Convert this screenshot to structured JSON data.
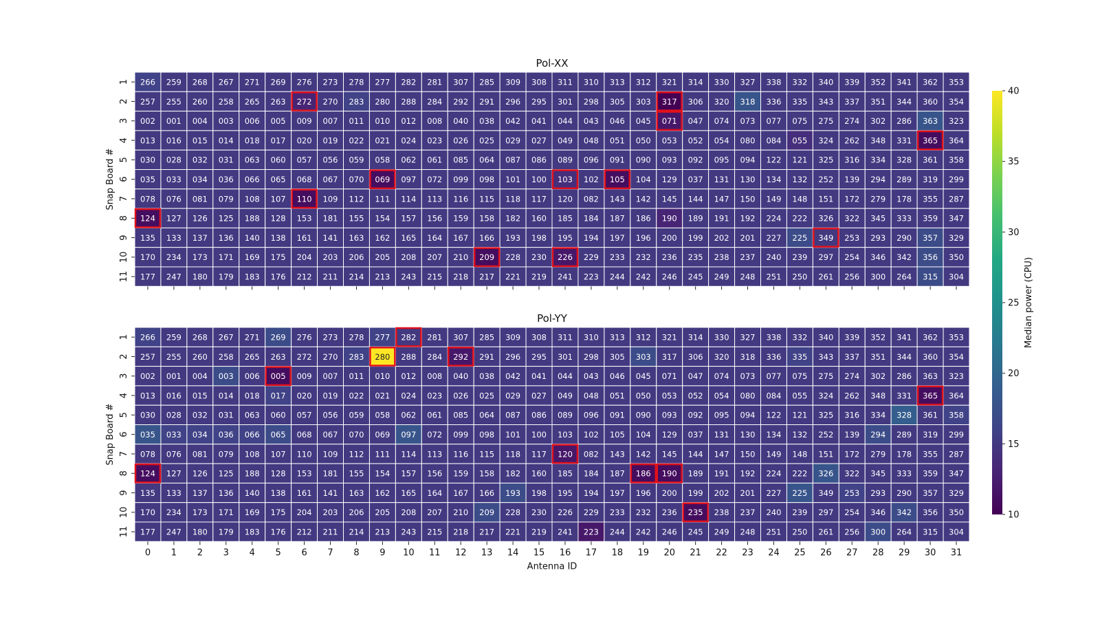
{
  "chart_data": {
    "type": "heatmap",
    "x_tick_labels": [
      "0",
      "1",
      "2",
      "3",
      "4",
      "5",
      "6",
      "7",
      "8",
      "9",
      "10",
      "11",
      "12",
      "13",
      "14",
      "15",
      "16",
      "17",
      "18",
      "19",
      "20",
      "21",
      "22",
      "23",
      "24",
      "25",
      "26",
      "27",
      "28",
      "29",
      "30",
      "31"
    ],
    "y_tick_labels": [
      "1",
      "2",
      "3",
      "4",
      "5",
      "6",
      "7",
      "8",
      "9",
      "10",
      "11"
    ],
    "xlabel": "Antenna ID",
    "ylabel": "Snap Board #",
    "colorbar": {
      "label": "Median power (CPU)",
      "range": [
        10,
        40
      ],
      "ticks": [
        "10",
        "15",
        "20",
        "25",
        "30",
        "35",
        "40"
      ],
      "colormap": "viridis"
    },
    "cell_labels": [
      [
        "266",
        "259",
        "268",
        "267",
        "271",
        "269",
        "276",
        "273",
        "278",
        "277",
        "282",
        "281",
        "307",
        "285",
        "309",
        "308",
        "311",
        "310",
        "313",
        "312",
        "321",
        "314",
        "330",
        "327",
        "338",
        "332",
        "340",
        "339",
        "352",
        "341",
        "362",
        "353"
      ],
      [
        "257",
        "255",
        "260",
        "258",
        "265",
        "263",
        "272",
        "270",
        "283",
        "280",
        "288",
        "284",
        "292",
        "291",
        "296",
        "295",
        "301",
        "298",
        "305",
        "303",
        "317",
        "306",
        "320",
        "318",
        "336",
        "335",
        "343",
        "337",
        "351",
        "344",
        "360",
        "354"
      ],
      [
        "002",
        "001",
        "004",
        "003",
        "006",
        "005",
        "009",
        "007",
        "011",
        "010",
        "012",
        "008",
        "040",
        "038",
        "042",
        "041",
        "044",
        "043",
        "046",
        "045",
        "071",
        "047",
        "074",
        "073",
        "077",
        "075",
        "275",
        "274",
        "302",
        "286",
        "363",
        "323"
      ],
      [
        "013",
        "016",
        "015",
        "014",
        "018",
        "017",
        "020",
        "019",
        "022",
        "021",
        "024",
        "023",
        "026",
        "025",
        "029",
        "027",
        "049",
        "048",
        "051",
        "050",
        "053",
        "052",
        "054",
        "080",
        "084",
        "055",
        "324",
        "262",
        "348",
        "331",
        "365",
        "364"
      ],
      [
        "030",
        "028",
        "032",
        "031",
        "063",
        "060",
        "057",
        "056",
        "059",
        "058",
        "062",
        "061",
        "085",
        "064",
        "087",
        "086",
        "089",
        "096",
        "091",
        "090",
        "093",
        "092",
        "095",
        "094",
        "122",
        "121",
        "325",
        "316",
        "334",
        "328",
        "361",
        "358"
      ],
      [
        "035",
        "033",
        "034",
        "036",
        "066",
        "065",
        "068",
        "067",
        "070",
        "069",
        "097",
        "072",
        "099",
        "098",
        "101",
        "100",
        "103",
        "102",
        "105",
        "104",
        "129",
        "037",
        "131",
        "130",
        "134",
        "132",
        "252",
        "139",
        "294",
        "289",
        "319",
        "299"
      ],
      [
        "078",
        "076",
        "081",
        "079",
        "108",
        "107",
        "110",
        "109",
        "112",
        "111",
        "114",
        "113",
        "116",
        "115",
        "118",
        "117",
        "120",
        "082",
        "143",
        "142",
        "145",
        "144",
        "147",
        "150",
        "149",
        "148",
        "151",
        "172",
        "279",
        "178",
        "355",
        "287"
      ],
      [
        "124",
        "127",
        "126",
        "125",
        "188",
        "128",
        "153",
        "181",
        "155",
        "154",
        "157",
        "156",
        "159",
        "158",
        "182",
        "160",
        "185",
        "184",
        "187",
        "186",
        "190",
        "189",
        "191",
        "192",
        "224",
        "222",
        "326",
        "322",
        "345",
        "333",
        "359",
        "347"
      ],
      [
        "135",
        "133",
        "137",
        "136",
        "140",
        "138",
        "161",
        "141",
        "163",
        "162",
        "165",
        "164",
        "167",
        "166",
        "193",
        "198",
        "195",
        "194",
        "197",
        "196",
        "200",
        "199",
        "202",
        "201",
        "227",
        "225",
        "349",
        "253",
        "293",
        "290",
        "357",
        "329"
      ],
      [
        "170",
        "234",
        "173",
        "171",
        "169",
        "175",
        "204",
        "203",
        "206",
        "205",
        "208",
        "207",
        "210",
        "209",
        "228",
        "230",
        "226",
        "229",
        "233",
        "232",
        "236",
        "235",
        "238",
        "237",
        "240",
        "239",
        "297",
        "254",
        "346",
        "342",
        "356",
        "350"
      ],
      [
        "177",
        "247",
        "180",
        "179",
        "183",
        "176",
        "212",
        "211",
        "214",
        "213",
        "243",
        "215",
        "218",
        "217",
        "221",
        "219",
        "241",
        "223",
        "244",
        "242",
        "246",
        "245",
        "249",
        "248",
        "251",
        "250",
        "261",
        "256",
        "300",
        "264",
        "315",
        "304"
      ]
    ],
    "panels": [
      {
        "title": "Pol-XX",
        "median_power": [
          [
            16,
            15,
            15,
            15,
            15,
            15,
            15,
            15,
            15,
            15,
            15,
            15,
            15,
            15,
            15,
            15,
            15,
            15,
            15,
            15,
            15,
            15,
            15,
            15,
            15,
            15,
            15,
            15,
            15,
            15,
            15,
            15
          ],
          [
            15,
            15,
            15,
            15,
            15,
            15,
            13,
            15,
            16,
            15,
            15,
            15,
            15,
            15,
            15,
            15,
            15,
            15,
            15,
            15,
            10,
            15,
            15,
            18,
            15,
            15,
            15,
            15,
            15,
            15,
            15,
            15
          ],
          [
            15,
            15,
            15,
            15,
            15,
            15,
            15,
            15,
            15,
            15,
            15,
            15,
            15,
            15,
            15,
            15,
            15,
            15,
            15,
            15,
            12,
            15,
            15,
            15,
            15,
            15,
            15,
            15,
            15,
            15,
            18,
            15
          ],
          [
            15,
            15,
            15,
            15,
            15,
            15,
            15,
            15,
            15,
            15,
            15,
            15,
            15,
            15,
            15,
            15,
            15,
            15,
            15,
            15,
            15,
            15,
            15,
            15,
            15,
            14,
            15,
            15,
            15,
            15,
            11,
            15
          ],
          [
            15,
            15,
            15,
            15,
            15,
            15,
            15,
            15,
            15,
            15,
            15,
            15,
            15,
            15,
            15,
            15,
            15,
            15,
            15,
            15,
            15,
            15,
            15,
            15,
            15,
            15,
            15,
            15,
            15,
            15,
            15,
            15
          ],
          [
            15,
            15,
            15,
            15,
            15,
            15,
            15,
            15,
            15,
            11,
            15,
            15,
            15,
            15,
            15,
            15,
            14,
            15,
            11,
            15,
            15,
            15,
            15,
            15,
            15,
            15,
            15,
            15,
            15,
            15,
            15,
            15
          ],
          [
            15,
            15,
            15,
            15,
            15,
            15,
            11,
            15,
            15,
            15,
            15,
            15,
            15,
            15,
            15,
            15,
            15,
            15,
            15,
            15,
            15,
            15,
            15,
            15,
            15,
            15,
            15,
            15,
            15,
            15,
            15,
            15
          ],
          [
            11,
            15,
            15,
            15,
            15,
            15,
            15,
            15,
            15,
            15,
            15,
            15,
            15,
            15,
            15,
            15,
            15,
            15,
            15,
            15,
            13,
            15,
            15,
            15,
            15,
            15,
            15,
            15,
            15,
            15,
            15,
            15
          ],
          [
            15,
            15,
            15,
            15,
            15,
            15,
            15,
            15,
            15,
            15,
            15,
            15,
            15,
            15,
            15,
            15,
            15,
            15,
            15,
            15,
            15,
            15,
            15,
            15,
            15,
            17,
            15,
            15,
            15,
            15,
            17,
            15
          ],
          [
            15,
            15,
            15,
            15,
            15,
            15,
            15,
            15,
            15,
            15,
            15,
            15,
            15,
            11,
            15,
            15,
            12,
            15,
            15,
            15,
            15,
            15,
            15,
            15,
            15,
            15,
            15,
            15,
            15,
            15,
            17,
            15
          ],
          [
            15,
            15,
            15,
            15,
            15,
            15,
            15,
            15,
            15,
            15,
            15,
            15,
            15,
            15,
            15,
            15,
            15,
            15,
            15,
            15,
            15,
            15,
            15,
            15,
            15,
            15,
            15,
            15,
            15,
            15,
            17,
            15
          ]
        ],
        "flagged": [
          [
            1,
            6
          ],
          [
            1,
            20
          ],
          [
            2,
            20
          ],
          [
            3,
            30
          ],
          [
            5,
            9
          ],
          [
            5,
            16
          ],
          [
            5,
            18
          ],
          [
            6,
            6
          ],
          [
            7,
            0
          ],
          [
            8,
            26
          ],
          [
            9,
            13
          ],
          [
            9,
            16
          ]
        ]
      },
      {
        "title": "Pol-YY",
        "median_power": [
          [
            16,
            15,
            15,
            15,
            15,
            17,
            15,
            15,
            15,
            16,
            15,
            15,
            15,
            15,
            15,
            15,
            15,
            15,
            15,
            15,
            15,
            15,
            15,
            15,
            15,
            15,
            15,
            15,
            15,
            15,
            15,
            15
          ],
          [
            15,
            15,
            15,
            15,
            15,
            15,
            15,
            15,
            16,
            40,
            15,
            15,
            12,
            15,
            15,
            15,
            15,
            15,
            15,
            17,
            15,
            15,
            15,
            15,
            15,
            16,
            15,
            15,
            15,
            15,
            15,
            15
          ],
          [
            15,
            15,
            15,
            17,
            15,
            11,
            15,
            15,
            15,
            15,
            15,
            15,
            15,
            15,
            15,
            15,
            15,
            15,
            15,
            15,
            15,
            15,
            15,
            15,
            15,
            15,
            15,
            15,
            15,
            15,
            15,
            15
          ],
          [
            15,
            15,
            15,
            15,
            15,
            16,
            15,
            15,
            15,
            15,
            15,
            15,
            15,
            15,
            15,
            15,
            15,
            15,
            15,
            15,
            15,
            15,
            15,
            15,
            15,
            15,
            15,
            15,
            15,
            15,
            11,
            15
          ],
          [
            15,
            15,
            15,
            15,
            15,
            15,
            15,
            15,
            15,
            15,
            15,
            15,
            15,
            15,
            15,
            15,
            15,
            15,
            15,
            15,
            15,
            15,
            15,
            15,
            15,
            15,
            15,
            15,
            15,
            19,
            15,
            16
          ],
          [
            18,
            16,
            16,
            16,
            16,
            17,
            15,
            15,
            15,
            15,
            18,
            15,
            15,
            15,
            15,
            15,
            15,
            15,
            15,
            15,
            15,
            15,
            15,
            15,
            15,
            15,
            15,
            15,
            17,
            15,
            15,
            15
          ],
          [
            15,
            15,
            15,
            15,
            15,
            15,
            15,
            15,
            15,
            15,
            15,
            15,
            15,
            15,
            15,
            15,
            12,
            15,
            15,
            15,
            15,
            15,
            15,
            15,
            15,
            15,
            15,
            15,
            15,
            15,
            15,
            15
          ],
          [
            11,
            15,
            15,
            15,
            15,
            15,
            15,
            15,
            15,
            15,
            15,
            15,
            15,
            15,
            15,
            15,
            15,
            15,
            15,
            11,
            11,
            15,
            15,
            15,
            15,
            15,
            18,
            15,
            15,
            15,
            15,
            15
          ],
          [
            15,
            15,
            15,
            15,
            15,
            15,
            15,
            15,
            15,
            15,
            15,
            15,
            15,
            15,
            17,
            15,
            15,
            15,
            15,
            15,
            15,
            15,
            15,
            15,
            15,
            18,
            15,
            16,
            15,
            15,
            15,
            15
          ],
          [
            15,
            15,
            15,
            15,
            15,
            15,
            15,
            15,
            15,
            15,
            15,
            15,
            15,
            17,
            15,
            15,
            15,
            15,
            15,
            15,
            15,
            11,
            15,
            15,
            15,
            15,
            15,
            15,
            15,
            17,
            15,
            15
          ],
          [
            15,
            15,
            15,
            15,
            15,
            15,
            15,
            15,
            15,
            15,
            15,
            15,
            15,
            15,
            15,
            15,
            15,
            12,
            15,
            15,
            15,
            15,
            15,
            15,
            15,
            15,
            15,
            15,
            17,
            15,
            15,
            15
          ]
        ],
        "flagged": [
          [
            0,
            10
          ],
          [
            1,
            9
          ],
          [
            1,
            12
          ],
          [
            2,
            5
          ],
          [
            3,
            30
          ],
          [
            6,
            16
          ],
          [
            7,
            0
          ],
          [
            7,
            19
          ],
          [
            7,
            20
          ],
          [
            9,
            21
          ]
        ]
      }
    ]
  }
}
